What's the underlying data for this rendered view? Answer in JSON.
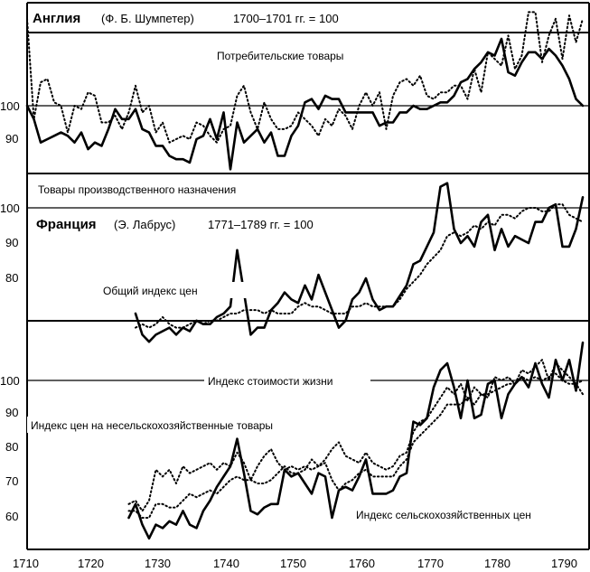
{
  "chart_data": [
    {
      "type": "line",
      "title": "Англия",
      "subtitle": "(Ф. Б. Шумпетер)",
      "note": "1700–1701 гг. = 100",
      "x_ticks": [
        "1710",
        "1720",
        "1730",
        "1740",
        "1750",
        "1760",
        "1770",
        "1780",
        "1790"
      ],
      "y_ticks": [
        "100",
        "90"
      ],
      "labels": [
        "Потребительские товары",
        "Товары производственного назначения"
      ],
      "series": [
        {
          "name": "Потребительские товары",
          "style": "dotted",
          "x": [
            1710,
            1711,
            1712,
            1713,
            1714,
            1715,
            1716,
            1717,
            1718,
            1719,
            1720,
            1721,
            1722,
            1723,
            1724,
            1725,
            1726,
            1727,
            1728,
            1729,
            1730,
            1731,
            1732,
            1733,
            1734,
            1735,
            1736,
            1737,
            1738,
            1739,
            1740,
            1741,
            1742,
            1743,
            1744,
            1745,
            1746,
            1747,
            1748,
            1749,
            1750,
            1751,
            1752,
            1753,
            1754,
            1755,
            1756,
            1757,
            1758,
            1759,
            1760,
            1761,
            1762,
            1763,
            1764,
            1765,
            1766,
            1767,
            1768,
            1769,
            1770,
            1771,
            1772,
            1773,
            1774,
            1775,
            1776,
            1777,
            1778,
            1779,
            1780,
            1781,
            1782,
            1783,
            1784,
            1785,
            1786,
            1787,
            1788,
            1789,
            1790,
            1791,
            1792
          ],
          "y": [
            126,
            96,
            107,
            108,
            101,
            100,
            92,
            100,
            99,
            104,
            103,
            95,
            95,
            97,
            93,
            98,
            106,
            98,
            100,
            92,
            95,
            89,
            90,
            91,
            90,
            95,
            94,
            91,
            89,
            93,
            94,
            103,
            106,
            98,
            93,
            101,
            96,
            93,
            93,
            94,
            98,
            96,
            94,
            91,
            96,
            94,
            99,
            97,
            93,
            100,
            104,
            100,
            104,
            93,
            103,
            107,
            108,
            106,
            109,
            103,
            102,
            104,
            104,
            106,
            106,
            102,
            111,
            104,
            116,
            114,
            112,
            121,
            111,
            115,
            128,
            128,
            113,
            121,
            126,
            114,
            127,
            119,
            126
          ]
        },
        {
          "name": "Товары производственного назначения",
          "style": "solid",
          "x": [
            1710,
            1711,
            1712,
            1713,
            1714,
            1715,
            1716,
            1717,
            1718,
            1719,
            1720,
            1721,
            1722,
            1723,
            1724,
            1725,
            1726,
            1727,
            1728,
            1729,
            1730,
            1731,
            1732,
            1733,
            1734,
            1735,
            1736,
            1737,
            1738,
            1739,
            1740,
            1741,
            1742,
            1743,
            1744,
            1745,
            1746,
            1747,
            1748,
            1749,
            1750,
            1751,
            1752,
            1753,
            1754,
            1755,
            1756,
            1757,
            1758,
            1759,
            1760,
            1761,
            1762,
            1763,
            1764,
            1765,
            1766,
            1767,
            1768,
            1769,
            1770,
            1771,
            1772,
            1773,
            1774,
            1775,
            1776,
            1777,
            1778,
            1779,
            1780,
            1781,
            1782,
            1783,
            1784,
            1785,
            1786,
            1787,
            1788,
            1789,
            1790,
            1791,
            1792
          ],
          "y": [
            100,
            96,
            89,
            90,
            91,
            92,
            91,
            89,
            92,
            87,
            89,
            88,
            93,
            99,
            96,
            96,
            99,
            93,
            92,
            88,
            88,
            85,
            84,
            84,
            83,
            90,
            91,
            96,
            90,
            98,
            81,
            95,
            89,
            91,
            93,
            89,
            92,
            85,
            85,
            91,
            94,
            101,
            102,
            99,
            103,
            102,
            102,
            98,
            98,
            98,
            98,
            98,
            94,
            95,
            95,
            98,
            98,
            100,
            99,
            99,
            100,
            101,
            101,
            103,
            107,
            108,
            111,
            113,
            116,
            115,
            120,
            110,
            109,
            113,
            116,
            116,
            114,
            117,
            115,
            112,
            108,
            102,
            100
          ]
        }
      ]
    },
    {
      "type": "line",
      "title": "Франция",
      "subtitle": "(Э. Лабрус)",
      "note": "1771–1789 гг. = 100",
      "x_ticks": [
        "1710",
        "1720",
        "1730",
        "1740",
        "1750",
        "1760",
        "1770",
        "1780",
        "1790"
      ],
      "y_ticks": [
        "100",
        "90",
        "80"
      ],
      "labels": [
        "Общий индекс цен"
      ],
      "series": [
        {
          "name": "Общий индекс цен",
          "style": "solid",
          "x": [
            1726,
            1727,
            1728,
            1729,
            1730,
            1731,
            1732,
            1733,
            1734,
            1735,
            1736,
            1737,
            1738,
            1739,
            1740,
            1741,
            1742,
            1743,
            1744,
            1745,
            1746,
            1747,
            1748,
            1749,
            1750,
            1751,
            1752,
            1753,
            1754,
            1755,
            1756,
            1757,
            1758,
            1759,
            1760,
            1761,
            1762,
            1763,
            1764,
            1765,
            1766,
            1767,
            1768,
            1769,
            1770,
            1771,
            1772,
            1773,
            1774,
            1775,
            1776,
            1777,
            1778,
            1779,
            1780,
            1781,
            1782,
            1783,
            1784,
            1785,
            1786,
            1787,
            1788,
            1789,
            1790,
            1791,
            1792
          ],
          "y": [
            70,
            64,
            62,
            64,
            65,
            66,
            64,
            66,
            65,
            68,
            67,
            67,
            69,
            70,
            72,
            88,
            76,
            64,
            66,
            66,
            71,
            73,
            76,
            74,
            73,
            78,
            74,
            81,
            76,
            71,
            66,
            68,
            74,
            76,
            80,
            74,
            71,
            72,
            72,
            75,
            78,
            84,
            85,
            89,
            93,
            106,
            107,
            94,
            90,
            92,
            89,
            96,
            98,
            88,
            94,
            89,
            92,
            91,
            90,
            96,
            96,
            100,
            101,
            89,
            89,
            94,
            103
          ]
        },
        {
          "name": "Общий индекс цен",
          "style": "dotted",
          "x": [
            1726,
            1727,
            1728,
            1729,
            1730,
            1731,
            1732,
            1733,
            1734,
            1735,
            1736,
            1737,
            1738,
            1739,
            1740,
            1741,
            1742,
            1743,
            1744,
            1745,
            1746,
            1747,
            1748,
            1749,
            1750,
            1751,
            1752,
            1753,
            1754,
            1755,
            1756,
            1757,
            1758,
            1759,
            1760,
            1761,
            1762,
            1763,
            1764,
            1765,
            1766,
            1767,
            1768,
            1769,
            1770,
            1771,
            1772,
            1773,
            1774,
            1775,
            1776,
            1777,
            1778,
            1779,
            1780,
            1781,
            1782,
            1783,
            1784,
            1785,
            1786,
            1787,
            1788,
            1789,
            1790,
            1791,
            1792
          ],
          "y": [
            66,
            67,
            66,
            67,
            69,
            67,
            66,
            66,
            67,
            68,
            67,
            68,
            68,
            69,
            70,
            70,
            71,
            71,
            71,
            70,
            71,
            70,
            70,
            70,
            72,
            73,
            72,
            72,
            71,
            70,
            70,
            70,
            72,
            72,
            73,
            72,
            72,
            72,
            72,
            74,
            77,
            79,
            81,
            84,
            86,
            88,
            92,
            93,
            92,
            93,
            95,
            94,
            96,
            95,
            98,
            98,
            97,
            99,
            100,
            100,
            99,
            99,
            101,
            101,
            98,
            97,
            96
          ]
        }
      ]
    },
    {
      "type": "line",
      "y_ticks": [
        "100",
        "90",
        "80",
        "70",
        "60"
      ],
      "x_ticks": [
        "1710",
        "1720",
        "1730",
        "1740",
        "1750",
        "1760",
        "1770",
        "1780",
        "1790"
      ],
      "labels": [
        "Индекс стоимости жизни",
        "Индекс цен на несельскохозяйственные товары",
        "Индекс сельскохозяйственных цен"
      ],
      "series": [
        {
          "name": "Индекс сельскохозяйственных цен",
          "style": "solid",
          "x": [
            1725,
            1726,
            1727,
            1728,
            1729,
            1730,
            1731,
            1732,
            1733,
            1734,
            1735,
            1736,
            1737,
            1738,
            1739,
            1740,
            1741,
            1742,
            1743,
            1744,
            1745,
            1746,
            1747,
            1748,
            1749,
            1750,
            1751,
            1752,
            1753,
            1754,
            1755,
            1756,
            1757,
            1758,
            1759,
            1760,
            1761,
            1762,
            1763,
            1764,
            1765,
            1766,
            1767,
            1768,
            1769,
            1770,
            1771,
            1772,
            1773,
            1774,
            1775,
            1776,
            1777,
            1778,
            1779,
            1780,
            1781,
            1782,
            1783,
            1784,
            1785,
            1786,
            1787,
            1788,
            1789,
            1790,
            1791,
            1792
          ],
          "y": [
            60,
            64,
            58,
            54,
            58,
            57,
            59,
            58,
            62,
            58,
            57,
            62,
            65,
            69,
            72,
            75,
            83,
            73,
            62,
            61,
            63,
            64,
            64,
            74,
            72,
            73,
            70,
            67,
            73,
            72,
            60,
            68,
            69,
            68,
            72,
            77,
            67,
            67,
            67,
            68,
            72,
            73,
            88,
            87,
            89,
            98,
            103,
            105,
            98,
            89,
            100,
            89,
            90,
            99,
            100,
            89,
            96,
            99,
            101,
            98,
            105,
            99,
            95,
            106,
            100,
            106,
            97,
            111
          ]
        },
        {
          "name": "Индекс стоимости жизни",
          "style": "dotted",
          "x": [
            1725,
            1726,
            1727,
            1728,
            1729,
            1730,
            1731,
            1732,
            1733,
            1734,
            1735,
            1736,
            1737,
            1738,
            1739,
            1740,
            1741,
            1742,
            1743,
            1744,
            1745,
            1746,
            1747,
            1748,
            1749,
            1750,
            1751,
            1752,
            1753,
            1754,
            1755,
            1756,
            1757,
            1758,
            1759,
            1760,
            1761,
            1762,
            1763,
            1764,
            1765,
            1766,
            1767,
            1768,
            1769,
            1770,
            1771,
            1772,
            1773,
            1774,
            1775,
            1776,
            1777,
            1778,
            1779,
            1780,
            1781,
            1782,
            1783,
            1784,
            1785,
            1786,
            1787,
            1788,
            1789,
            1790,
            1791,
            1792
          ],
          "y": [
            62,
            62,
            60,
            60,
            64,
            64,
            63,
            63,
            65,
            67,
            66,
            67,
            68,
            67,
            69,
            71,
            72,
            71,
            71,
            70,
            70,
            71,
            73,
            75,
            73,
            73,
            74,
            77,
            75,
            76,
            71,
            68,
            70,
            71,
            73,
            74,
            72,
            72,
            72,
            72,
            75,
            77,
            82,
            84,
            86,
            88,
            90,
            93,
            93,
            93,
            95,
            93,
            96,
            96,
            97,
            98,
            99,
            99,
            101,
            100,
            101,
            100,
            101,
            102,
            100,
            99,
            99,
            100
          ]
        },
        {
          "name": "Индекс цен на несельскохозяйственные товары",
          "style": "dotted",
          "x": [
            1725,
            1726,
            1727,
            1728,
            1729,
            1730,
            1731,
            1732,
            1733,
            1734,
            1735,
            1736,
            1737,
            1738,
            1739,
            1740,
            1741,
            1742,
            1743,
            1744,
            1745,
            1746,
            1747,
            1748,
            1749,
            1750,
            1751,
            1752,
            1753,
            1754,
            1755,
            1756,
            1757,
            1758,
            1759,
            1760,
            1761,
            1762,
            1763,
            1764,
            1765,
            1766,
            1767,
            1768,
            1769,
            1770,
            1771,
            1772,
            1773,
            1774,
            1775,
            1776,
            1777,
            1778,
            1779,
            1780,
            1781,
            1782,
            1783,
            1784,
            1785,
            1786,
            1787,
            1788,
            1789,
            1790,
            1791,
            1792
          ],
          "y": [
            64,
            65,
            62,
            65,
            74,
            72,
            74,
            70,
            75,
            73,
            74,
            75,
            76,
            74,
            76,
            75,
            79,
            76,
            71,
            75,
            78,
            80,
            76,
            74,
            75,
            74,
            75,
            74,
            75,
            77,
            80,
            82,
            78,
            77,
            76,
            79,
            76,
            75,
            74,
            75,
            78,
            79,
            85,
            88,
            89,
            92,
            95,
            98,
            96,
            99,
            94,
            98,
            96,
            95,
            101,
            100,
            101,
            99,
            103,
            102,
            104,
            106,
            100,
            105,
            103,
            101,
            99,
            96
          ]
        }
      ]
    }
  ]
}
